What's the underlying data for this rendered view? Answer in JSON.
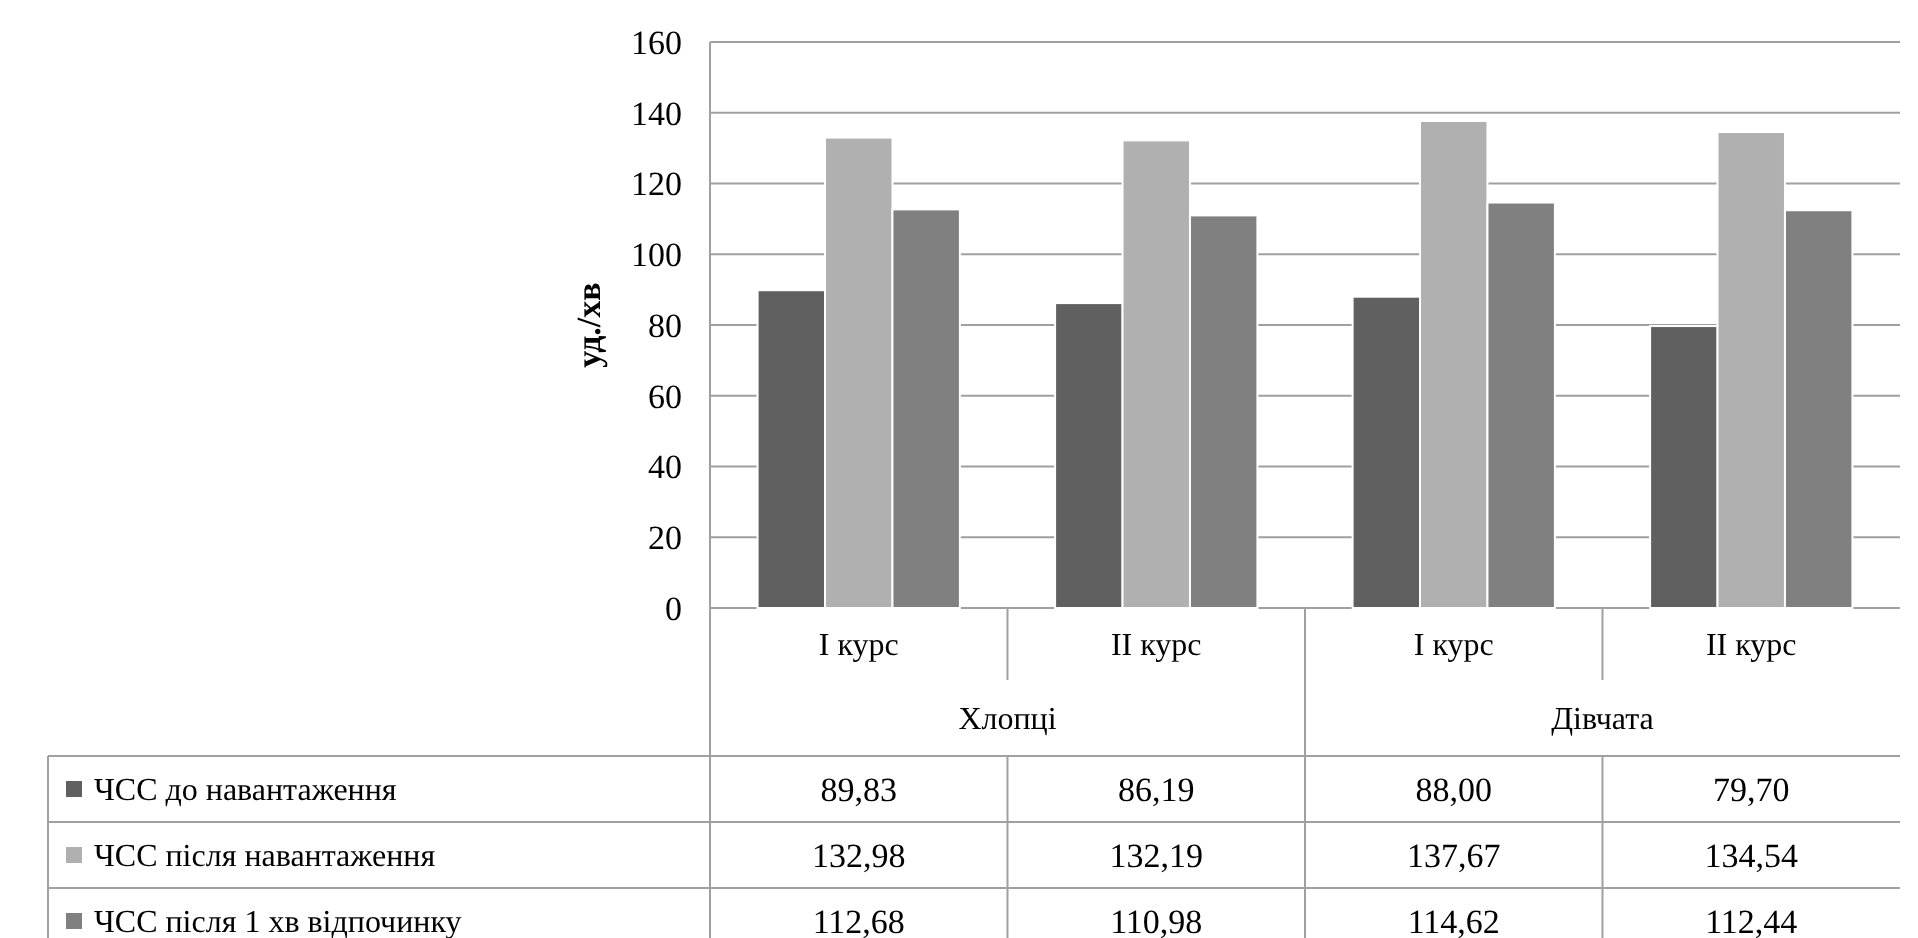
{
  "chart_data": {
    "type": "bar",
    "ylabel": "уд./хв",
    "categories": [
      "I курс",
      "II курс",
      "I курс",
      "II курс"
    ],
    "annotations": [
      "Хлопці",
      "Дівчата"
    ],
    "series": [
      {
        "name": "ЧСС до навантаження",
        "color": "#606060",
        "values": [
          89.83,
          86.19,
          88.0,
          79.7
        ],
        "value_labels": [
          "89,83",
          "86,19",
          "88,00",
          "79,70"
        ]
      },
      {
        "name": "ЧСС після навантаження",
        "color": "#b0b0b0",
        "values": [
          132.98,
          132.19,
          137.67,
          134.54
        ],
        "value_labels": [
          "132,98",
          "132,19",
          "137,67",
          "134,54"
        ]
      },
      {
        "name": "ЧСС після 1 хв відпочинку",
        "color": "#808080",
        "values": [
          112.68,
          110.98,
          114.62,
          112.44
        ],
        "value_labels": [
          "112,68",
          "110,98",
          "114,62",
          "112,44"
        ]
      }
    ],
    "ylim": [
      0,
      160
    ],
    "yticks": [
      0,
      20,
      40,
      60,
      80,
      100,
      120,
      140,
      160
    ],
    "grid": "y",
    "legend": "bottom"
  }
}
